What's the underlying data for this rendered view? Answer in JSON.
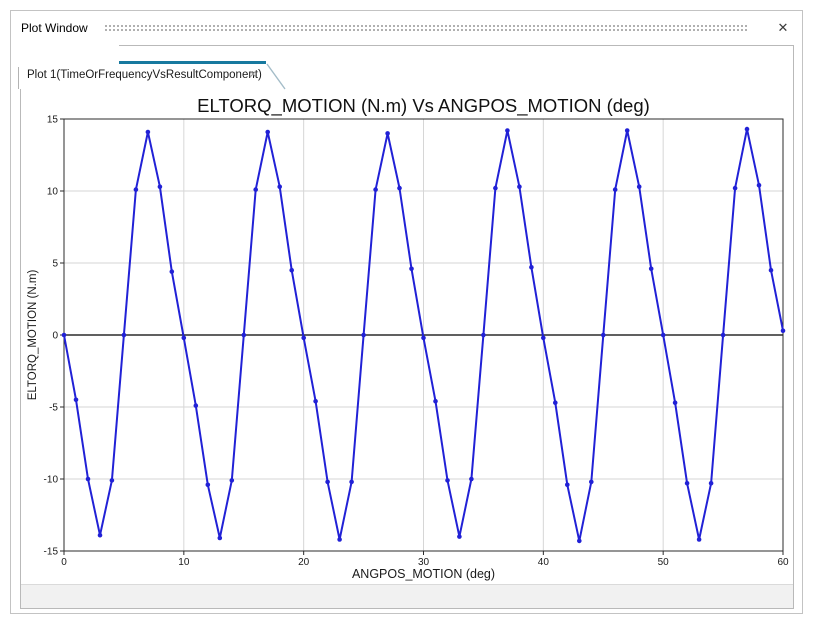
{
  "window": {
    "title": "Plot Window",
    "close_glyph": "✕"
  },
  "tab": {
    "label": "Plot 1(TimeOrFrequencyVsResultComponent)",
    "close_glyph": "✕",
    "accent_color": "#17799f"
  },
  "chart_data": {
    "type": "line",
    "title": "ELTORQ_MOTION  (N.m) Vs ANGPOS_MOTION (deg)",
    "xlabel": "ANGPOS_MOTION (deg)",
    "ylabel": "ELTORQ_MOTION  (N.m)",
    "xlim": [
      0,
      60
    ],
    "ylim": [
      -15,
      15
    ],
    "xticks": [
      0,
      10,
      20,
      30,
      40,
      50,
      60
    ],
    "yticks": [
      -15,
      -10,
      -5,
      0,
      5,
      10,
      15
    ],
    "grid": true,
    "zero_line": true,
    "legend": "none",
    "series": [
      {
        "name": "ELTORQ_MOTION",
        "color": "#2121d6",
        "marker": "dot",
        "x": [
          0,
          1,
          2,
          3,
          4,
          5,
          6,
          7,
          8,
          9,
          10,
          11,
          12,
          13,
          14,
          15,
          16,
          17,
          18,
          19,
          20,
          21,
          22,
          23,
          24,
          25,
          26,
          27,
          28,
          29,
          30,
          31,
          32,
          33,
          34,
          35,
          36,
          37,
          38,
          39,
          40,
          41,
          42,
          43,
          44,
          45,
          46,
          47,
          48,
          49,
          50,
          51,
          52,
          53,
          54,
          55,
          56,
          57,
          58,
          59,
          60
        ],
        "y": [
          0,
          -4.5,
          -10.0,
          -13.9,
          -10.1,
          0,
          10.1,
          14.1,
          10.3,
          4.4,
          -0.2,
          -4.9,
          -10.4,
          -14.1,
          -10.1,
          0,
          10.1,
          14.1,
          10.3,
          4.5,
          -0.2,
          -4.6,
          -10.2,
          -14.2,
          -10.2,
          0,
          10.1,
          14.0,
          10.2,
          4.6,
          -0.2,
          -4.6,
          -10.1,
          -14.0,
          -10.0,
          0,
          10.2,
          14.2,
          10.3,
          4.7,
          -0.2,
          -4.7,
          -10.4,
          -14.3,
          -10.2,
          0,
          10.1,
          14.2,
          10.3,
          4.6,
          0,
          -4.7,
          -10.3,
          -14.2,
          -10.3,
          0,
          10.2,
          14.3,
          10.4,
          4.5,
          0.3
        ]
      }
    ],
    "style": {
      "grid_color": "#d6d6d6",
      "border_color": "#2b2b2b",
      "zero_line_color": "#000000",
      "text_color": "#1a1a1a"
    }
  }
}
